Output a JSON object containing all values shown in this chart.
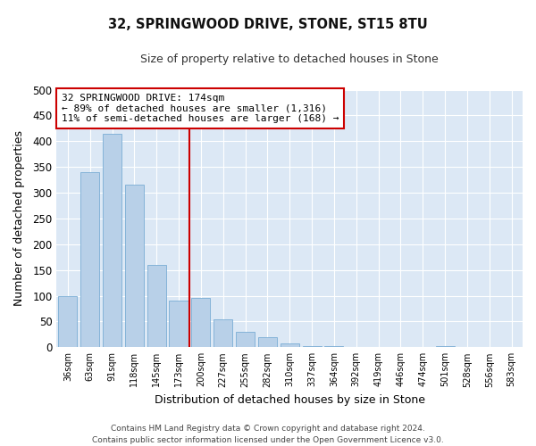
{
  "title_line1": "32, SPRINGWOOD DRIVE, STONE, ST15 8TU",
  "title_line2": "Size of property relative to detached houses in Stone",
  "xlabel": "Distribution of detached houses by size in Stone",
  "ylabel": "Number of detached properties",
  "bar_color": "#b8d0e8",
  "bar_edge_color": "#7aadd4",
  "background_color": "#dce8f5",
  "fig_background_color": "#ffffff",
  "grid_color": "#ffffff",
  "vline_color": "#cc0000",
  "annotation_text": "32 SPRINGWOOD DRIVE: 174sqm\n← 89% of detached houses are smaller (1,316)\n11% of semi-detached houses are larger (168) →",
  "annotation_box_color": "#ffffff",
  "annotation_box_edge_color": "#cc0000",
  "categories": [
    "36sqm",
    "63sqm",
    "91sqm",
    "118sqm",
    "145sqm",
    "173sqm",
    "200sqm",
    "227sqm",
    "255sqm",
    "282sqm",
    "310sqm",
    "337sqm",
    "364sqm",
    "392sqm",
    "419sqm",
    "446sqm",
    "474sqm",
    "501sqm",
    "528sqm",
    "556sqm",
    "583sqm"
  ],
  "values": [
    100,
    340,
    415,
    315,
    160,
    90,
    95,
    55,
    30,
    20,
    7,
    3,
    3,
    1,
    0,
    0,
    0,
    2,
    0,
    1,
    1
  ],
  "ylim": [
    0,
    500
  ],
  "yticks": [
    0,
    50,
    100,
    150,
    200,
    250,
    300,
    350,
    400,
    450,
    500
  ],
  "footnote_line1": "Contains HM Land Registry data © Crown copyright and database right 2024.",
  "footnote_line2": "Contains public sector information licensed under the Open Government Licence v3.0."
}
